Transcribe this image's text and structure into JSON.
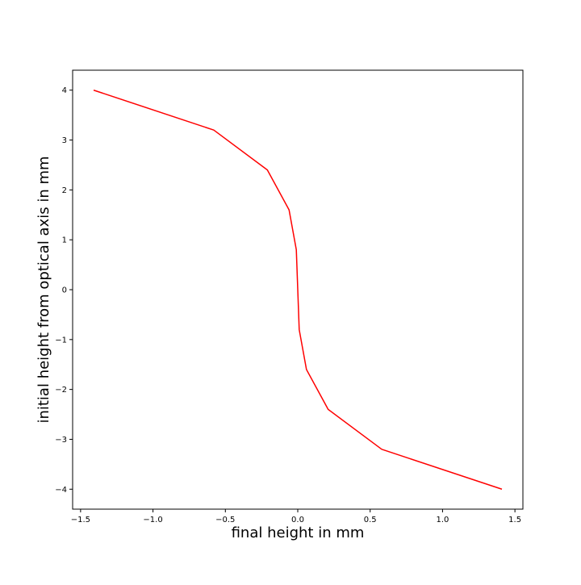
{
  "chart_data": {
    "type": "line",
    "title": "",
    "xlabel": "final height in mm",
    "ylabel": "initial height from optical axis in mm",
    "xlim": [
      -1.555,
      1.555
    ],
    "ylim": [
      -4.4,
      4.4
    ],
    "grid": false,
    "x_ticks": [
      -1.5,
      -1.0,
      -0.5,
      0.0,
      0.5,
      1.0,
      1.5
    ],
    "x_tick_labels": [
      "−1.5",
      "−1.0",
      "−0.5",
      "0.0",
      "0.5",
      "1.0",
      "1.5"
    ],
    "y_ticks": [
      4,
      3,
      2,
      1,
      0,
      -1,
      -2,
      -3,
      -4
    ],
    "y_tick_labels": [
      "4",
      "3",
      "2",
      "1",
      "0",
      "−1",
      "−2",
      "−3",
      "−4"
    ],
    "series": [
      {
        "color": "#ff0000",
        "x": [
          -1.41,
          -0.58,
          -0.21,
          -0.06,
          -0.01,
          0.01,
          0.06,
          0.21,
          0.58,
          1.41
        ],
        "y": [
          4.0,
          3.2,
          2.4,
          1.6,
          0.8,
          -0.8,
          -1.6,
          -2.4,
          -3.2,
          -4.0
        ]
      }
    ]
  }
}
